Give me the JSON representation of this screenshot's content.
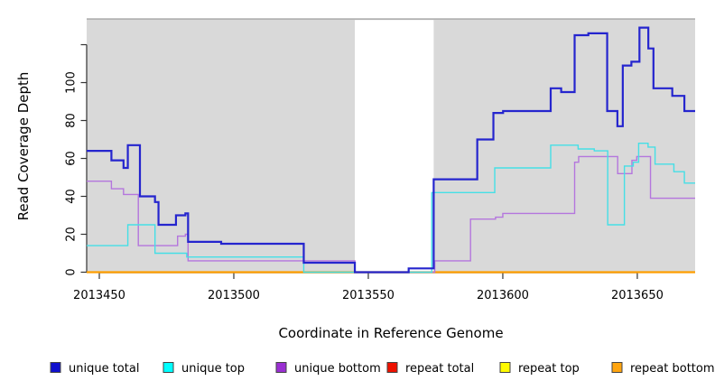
{
  "chart_data": {
    "type": "line",
    "subtype": "step",
    "title": "",
    "xlabel": "Coordinate in Reference Genome",
    "ylabel": "Read Coverage Depth",
    "x_range": [
      2013445.3,
      2013671.5
    ],
    "y_range": [
      0,
      133
    ],
    "x_tick_values": [
      2013450,
      2013500,
      2013550,
      2013600,
      2013650
    ],
    "x_tick_labels": [
      "2013450",
      "2013500",
      "2013550",
      "2013600",
      "2013650"
    ],
    "y_tick_values": [
      0,
      20,
      40,
      60,
      80,
      100,
      120
    ],
    "y_tick_labels": [
      "0",
      "20",
      "40",
      "60",
      "80",
      "100",
      ""
    ],
    "grid": false,
    "legend_position": "bottom",
    "panel_bg": "#d9d9d9",
    "panel_border": "#9e9e9e",
    "no_data_region": {
      "from": 2013545,
      "to": 2013574.3
    },
    "draw_order": [
      3,
      4,
      5,
      2,
      1,
      0
    ],
    "series": [
      {
        "name": "unique total",
        "color": "#2525ce",
        "swatch": "#0f0fcd",
        "width": 2.2,
        "points": [
          [
            2013445.3,
            64
          ],
          [
            2013454.5,
            59
          ],
          [
            2013459.0,
            55
          ],
          [
            2013460.6,
            67
          ],
          [
            2013465.1,
            40
          ],
          [
            2013470.7,
            37
          ],
          [
            2013472.0,
            25
          ],
          [
            2013478.5,
            30
          ],
          [
            2013482.0,
            31
          ],
          [
            2013483.0,
            16
          ],
          [
            2013495.3,
            15
          ],
          [
            2013526.0,
            5
          ],
          [
            2013545.0,
            0
          ],
          [
            2013565.0,
            2
          ],
          [
            2013574.3,
            49
          ],
          [
            2013590.5,
            70
          ],
          [
            2013596.5,
            84
          ],
          [
            2013600.1,
            85
          ],
          [
            2013617.8,
            97
          ],
          [
            2013621.7,
            95
          ],
          [
            2013626.7,
            125
          ],
          [
            2013631.8,
            126
          ],
          [
            2013638.8,
            85
          ],
          [
            2013642.6,
            77
          ],
          [
            2013644.6,
            109
          ],
          [
            2013647.8,
            111
          ],
          [
            2013650.8,
            129
          ],
          [
            2013654.1,
            118
          ],
          [
            2013656.0,
            97
          ],
          [
            2013663.0,
            93
          ],
          [
            2013667.5,
            85
          ]
        ]
      },
      {
        "name": "unique top",
        "color": "#45dfe6",
        "swatch": "#00ffff",
        "width": 1.4,
        "points": [
          [
            2013445.3,
            14
          ],
          [
            2013460.6,
            25
          ],
          [
            2013470.7,
            10
          ],
          [
            2013482.5,
            8
          ],
          [
            2013526.0,
            0
          ],
          [
            2013573.6,
            42
          ],
          [
            2013597.0,
            55
          ],
          [
            2013617.8,
            67
          ],
          [
            2013628.0,
            65
          ],
          [
            2013634.0,
            64
          ],
          [
            2013639.0,
            25
          ],
          [
            2013645.2,
            56
          ],
          [
            2013648.5,
            58
          ],
          [
            2013650.5,
            68
          ],
          [
            2013654.0,
            66
          ],
          [
            2013656.6,
            57
          ],
          [
            2013663.6,
            53
          ],
          [
            2013667.5,
            47
          ]
        ]
      },
      {
        "name": "unique bottom",
        "color": "#b476dd",
        "swatch": "#9a2fd2",
        "width": 1.4,
        "points": [
          [
            2013445.3,
            48
          ],
          [
            2013454.5,
            44
          ],
          [
            2013459.0,
            41
          ],
          [
            2013464.5,
            14
          ],
          [
            2013479.1,
            19
          ],
          [
            2013482.0,
            20
          ],
          [
            2013483.0,
            6
          ],
          [
            2013545.0,
            0
          ],
          [
            2013574.7,
            6
          ],
          [
            2013588.0,
            28
          ],
          [
            2013597.3,
            29
          ],
          [
            2013600.0,
            31
          ],
          [
            2013626.7,
            58
          ],
          [
            2013628.2,
            61
          ],
          [
            2013642.7,
            52
          ],
          [
            2013648.0,
            59
          ],
          [
            2013649.8,
            61
          ],
          [
            2013654.9,
            39
          ]
        ]
      },
      {
        "name": "repeat total",
        "color": "#dd1100",
        "swatch": "#ee1100",
        "width": 1.4,
        "points": [
          [
            2013445.3,
            0
          ]
        ]
      },
      {
        "name": "repeat top",
        "color": "#ffff00",
        "swatch": "#fffb00",
        "width": 1.4,
        "points": [
          [
            2013445.3,
            0
          ]
        ]
      },
      {
        "name": "repeat bottom",
        "color": "#ff9e00",
        "swatch": "#ffa510",
        "width": 2.2,
        "points": [
          [
            2013445.3,
            0
          ]
        ]
      }
    ]
  }
}
